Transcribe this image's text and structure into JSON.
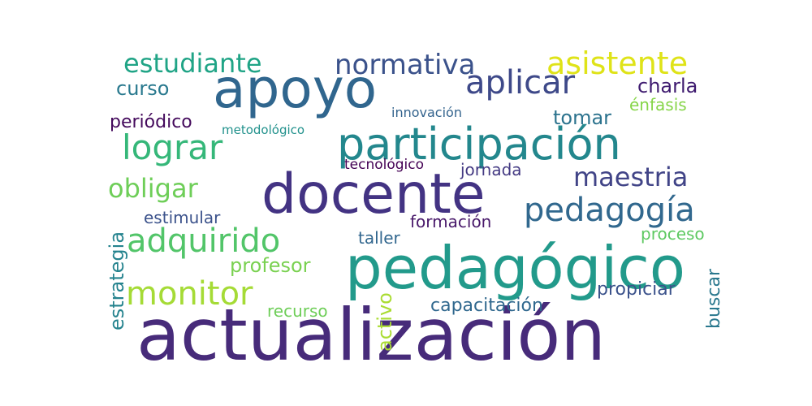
{
  "words": [
    {
      "id": "actualizacion",
      "text": "actualización",
      "color": "#472b7a"
    },
    {
      "id": "pedagogico",
      "text": "pedagógico",
      "color": "#229a8b"
    },
    {
      "id": "docente",
      "text": "docente",
      "color": "#433383"
    },
    {
      "id": "apoyo",
      "text": "apoyo",
      "color": "#30668e"
    },
    {
      "id": "participacion",
      "text": "participación",
      "color": "#23878d"
    },
    {
      "id": "aplicar",
      "text": "aplicar",
      "color": "#3e4989"
    },
    {
      "id": "pedagogia",
      "text": "pedagogía",
      "color": "#31688e"
    },
    {
      "id": "normativa",
      "text": "normativa",
      "color": "#3b528b"
    },
    {
      "id": "estudiante",
      "text": "estudiante",
      "color": "#20a486"
    },
    {
      "id": "asistente",
      "text": "asistente",
      "color": "#dfe318"
    },
    {
      "id": "lograr",
      "text": "lograr",
      "color": "#35b779"
    },
    {
      "id": "adquirido",
      "text": "adquirido",
      "color": "#52c569"
    },
    {
      "id": "monitor",
      "text": "monitor",
      "color": "#a5db36"
    },
    {
      "id": "maestria",
      "text": "maestria",
      "color": "#414487"
    },
    {
      "id": "obligar",
      "text": "obligar",
      "color": "#6ece58"
    },
    {
      "id": "charla",
      "text": "charla",
      "color": "#3e1a6f"
    },
    {
      "id": "tomar",
      "text": "tomar",
      "color": "#2c738e"
    },
    {
      "id": "curso",
      "text": "curso",
      "color": "#29798e"
    },
    {
      "id": "profesor",
      "text": "profesor",
      "color": "#7ad151"
    },
    {
      "id": "periodico",
      "text": "periódico",
      "color": "#440a5c"
    },
    {
      "id": "enfasis",
      "text": "énfasis",
      "color": "#86d549"
    },
    {
      "id": "formacion",
      "text": "formación",
      "color": "#48186a"
    },
    {
      "id": "estimular",
      "text": "estimular",
      "color": "#3b528b"
    },
    {
      "id": "taller",
      "text": "taller",
      "color": "#31668e"
    },
    {
      "id": "jornada",
      "text": "jornada",
      "color": "#443a83"
    },
    {
      "id": "capacitacion",
      "text": "capacitación",
      "color": "#30688e"
    },
    {
      "id": "propiciar",
      "text": "propiciar",
      "color": "#3b528b"
    },
    {
      "id": "proceso",
      "text": "proceso",
      "color": "#5ec962"
    },
    {
      "id": "recurso",
      "text": "recurso",
      "color": "#6ece58"
    },
    {
      "id": "estrategia",
      "text": "estrategia",
      "color": "#25838e"
    },
    {
      "id": "buscar",
      "text": "buscar",
      "color": "#2a788e"
    },
    {
      "id": "activo",
      "text": "activo",
      "color": "#aadc32"
    },
    {
      "id": "innovacion",
      "text": "innovación",
      "color": "#33638d"
    },
    {
      "id": "metodologico",
      "text": "metodológico",
      "color": "#21918c"
    },
    {
      "id": "tecnologico",
      "text": "tecnológico",
      "color": "#440154"
    }
  ]
}
